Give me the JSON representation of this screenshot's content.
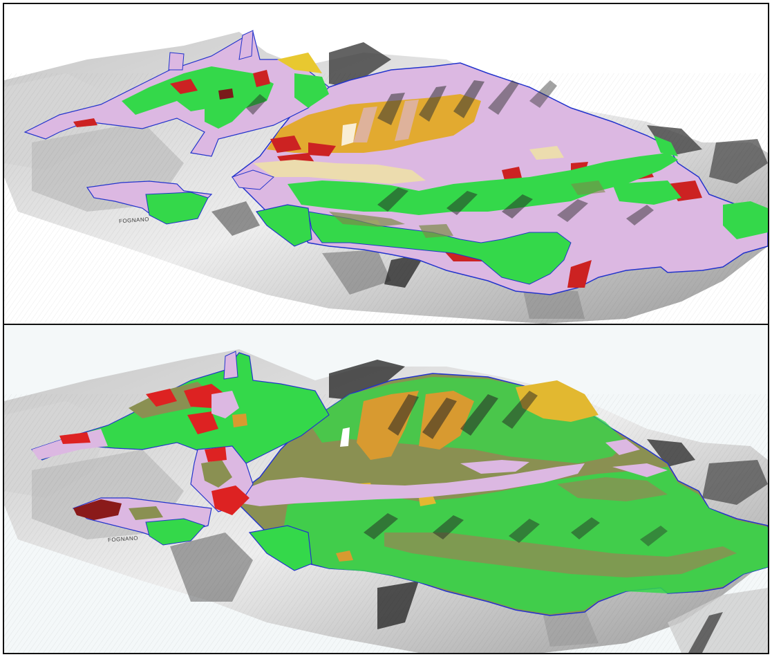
{
  "panels": [
    {
      "id": "top",
      "place_label": "FOGNANO",
      "legend_colors": {
        "pink": "#dcb8e2",
        "green": "#34d84a",
        "ochre": "#e2aa30",
        "red": "#cc2222",
        "olive": "#7c8a4a",
        "cream": "#ecdcae",
        "boundary": "#2233cc"
      }
    },
    {
      "id": "bottom",
      "place_label": "FOGNANO",
      "legend_colors": {
        "pink": "#dcb8e2",
        "green": "#34d84a",
        "ochre": "#d89a30",
        "red": "#dd2222",
        "olive": "#8a9052",
        "darkred": "#8a1a1a",
        "boundary": "#2233cc"
      }
    }
  ]
}
